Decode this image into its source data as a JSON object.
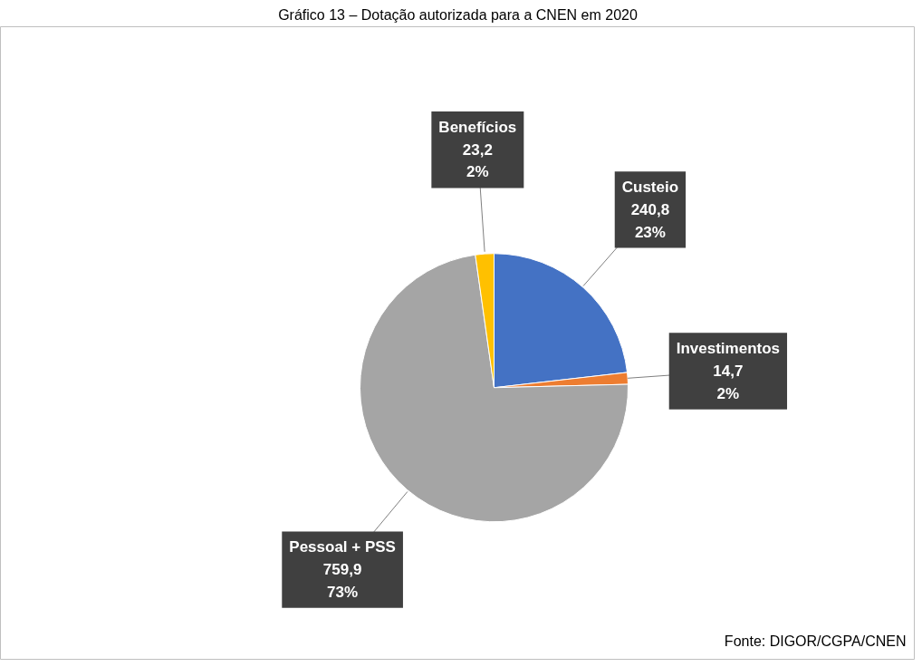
{
  "chart_data": {
    "type": "pie",
    "title": "Gráfico 13 – Dotação autorizada para a CNEN em 2020",
    "categories": [
      "Custeio",
      "Investimentos",
      "Pessoal + PSS",
      "Benefícios"
    ],
    "values": [
      240.8,
      14.7,
      759.9,
      23.2
    ],
    "colors": [
      "#4472c4",
      "#ed7d31",
      "#a5a5a5",
      "#ffc000"
    ],
    "value_labels": [
      "240,8\n23%",
      "14,7\n2%",
      "759,9\n73%",
      "23,2\n2%"
    ],
    "annotations": [
      "Fonte: DIGOR/CGPA/CNEN"
    ]
  }
}
